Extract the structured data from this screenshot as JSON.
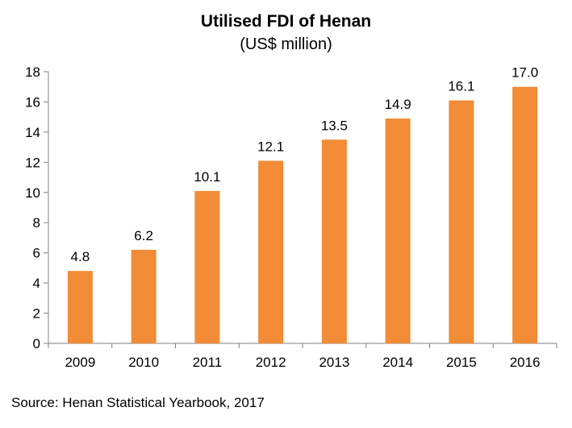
{
  "chart_data": {
    "type": "bar",
    "title": "Utilised FDI of Henan",
    "subtitle": "(US$ million)",
    "categories": [
      "2009",
      "2010",
      "2011",
      "2012",
      "2013",
      "2014",
      "2015",
      "2016"
    ],
    "values": [
      4.8,
      6.2,
      10.1,
      12.1,
      13.5,
      14.9,
      16.1,
      17.0
    ],
    "data_labels": [
      "4.8",
      "6.2",
      "10.1",
      "12.1",
      "13.5",
      "14.9",
      "16.1",
      "17.0"
    ],
    "ylim": [
      0,
      18
    ],
    "yticks": [
      "0",
      "2",
      "4",
      "6",
      "8",
      "10",
      "12",
      "14",
      "16",
      "18"
    ],
    "bar_color": "#F28C36",
    "grid": false,
    "legend": false
  },
  "source": "Source: Henan Statistical Yearbook, 2017"
}
